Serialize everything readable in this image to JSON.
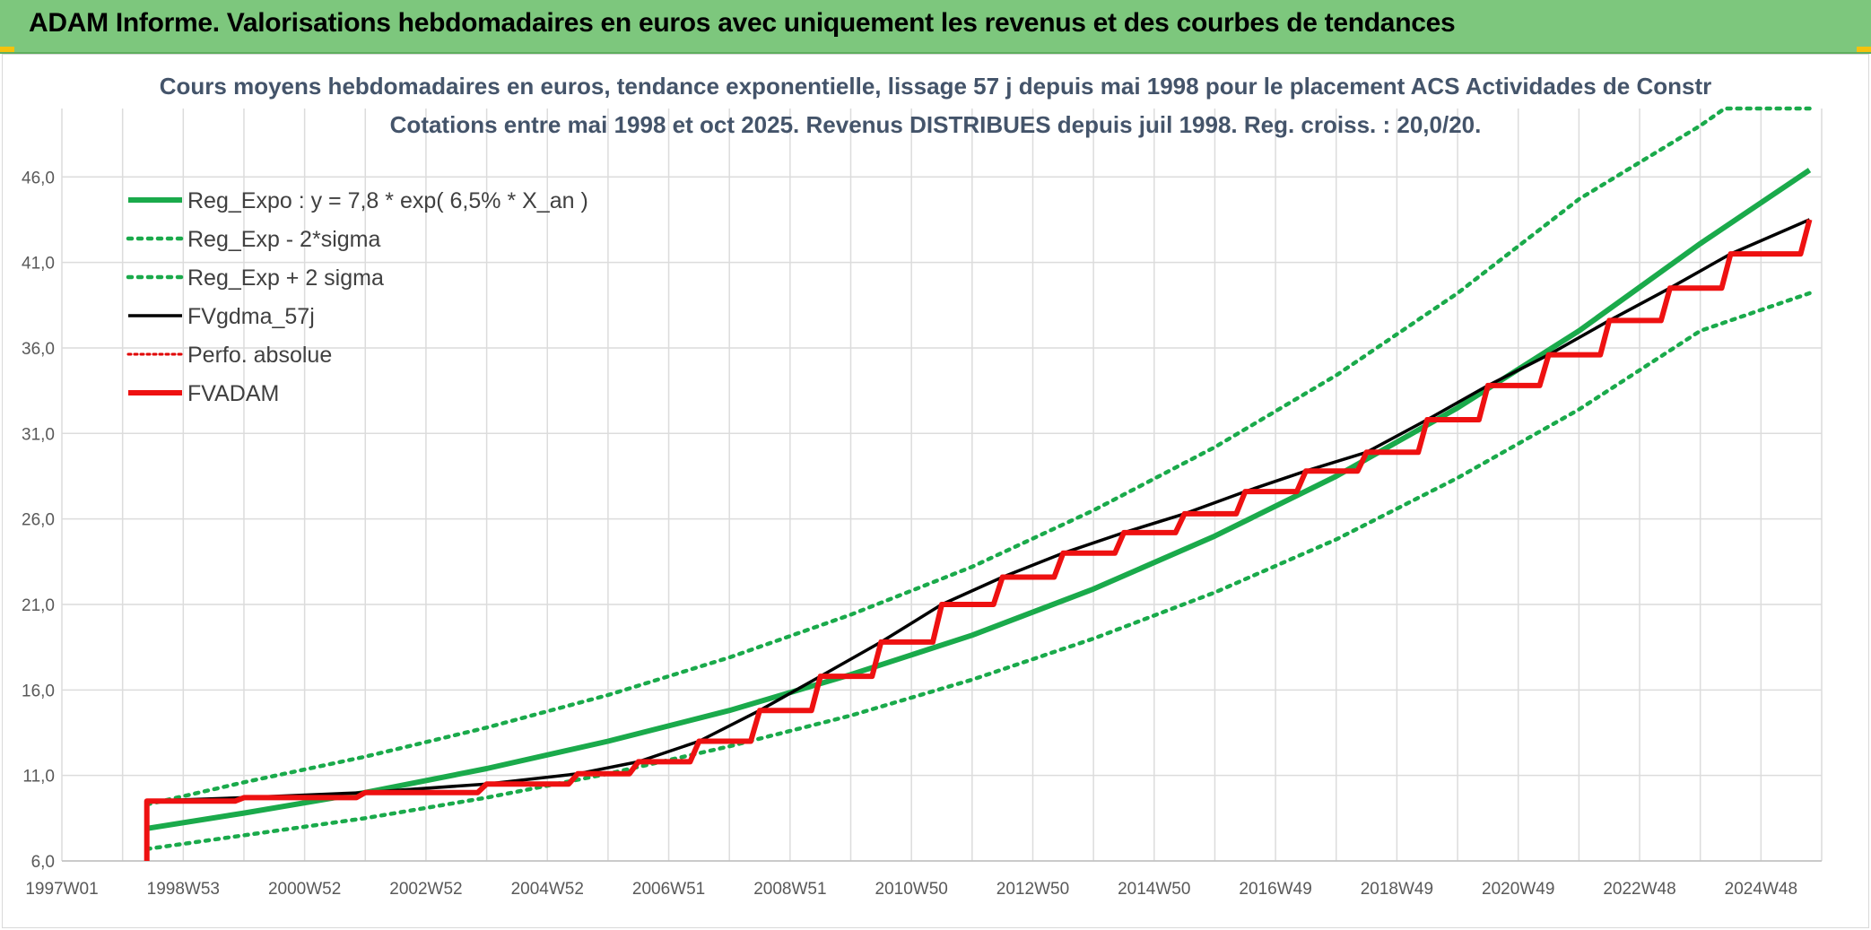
{
  "header": {
    "title": "ADAM Informe. Valorisations hebdomadaires en euros avec uniquement les revenus et des courbes de tendances"
  },
  "colors": {
    "banner": "#7dc77d",
    "reg_expo": "#1aaa4b",
    "sigma": "#1aaa4b",
    "fvgdma": "#000000",
    "perfo": "#e00000",
    "fvadam": "#ee1111",
    "grid": "#dcdcdc"
  },
  "chart_data": {
    "type": "line",
    "title": "Cours moyens hebdomadaires en euros, tendance exponentielle, lissage 57 j depuis mai 1998 pour le placement ACS Actividades de Constr",
    "subtitle": "Cotations entre mai 1998 et oct 2025. Revenus DISTRIBUES depuis juil 1998. Reg. croiss. : 20,0/20.",
    "xlabel": "",
    "ylabel": "",
    "x_tick_labels": [
      "1997W01",
      "1998W53",
      "2000W52",
      "2002W52",
      "2004W52",
      "2006W51",
      "2008W51",
      "2010W50",
      "2012W50",
      "2014W50",
      "2016W49",
      "2018W49",
      "2020W49",
      "2022W48",
      "2024W48"
    ],
    "x_ticks_year": [
      1997.0,
      1999.0,
      2001.0,
      2003.0,
      2005.0,
      2007.0,
      2009.0,
      2011.0,
      2013.0,
      2015.0,
      2017.0,
      2019.0,
      2021.0,
      2023.0,
      2025.0
    ],
    "xlim": [
      1997.0,
      2026.0
    ],
    "y_tick_labels": [
      "6,0",
      "11,0",
      "16,0",
      "21,0",
      "26,0",
      "31,0",
      "36,0",
      "41,0",
      "46,0"
    ],
    "y_ticks": [
      6,
      11,
      16,
      21,
      26,
      31,
      36,
      41,
      46
    ],
    "ylim": [
      6,
      50
    ],
    "grid": true,
    "legend_position": "top-left",
    "series": [
      {
        "name": "Reg_Expo : y = 7,8 * exp( 6,5% *  X_an )",
        "style": "solid",
        "x": [
          1998.4,
          2000,
          2002,
          2004,
          2006,
          2008,
          2010,
          2012,
          2014,
          2016,
          2018,
          2020,
          2022,
          2024,
          2025.8
        ],
        "y": [
          7.9,
          8.8,
          10.0,
          11.4,
          13.0,
          14.8,
          16.9,
          19.2,
          21.9,
          25.0,
          28.5,
          32.5,
          37.0,
          42.1,
          46.4
        ]
      },
      {
        "name": "Reg_Exp - 2*sigma",
        "style": "dotted",
        "x": [
          1998.4,
          2000,
          2002,
          2004,
          2006,
          2008,
          2010,
          2012,
          2014,
          2016,
          2018,
          2020,
          2022,
          2024,
          2025.8
        ],
        "y": [
          6.7,
          7.5,
          8.5,
          9.7,
          11.1,
          12.7,
          14.5,
          16.6,
          19.0,
          21.7,
          24.8,
          28.4,
          32.4,
          37.0,
          39.2
        ]
      },
      {
        "name": "Reg_Exp + 2 sigma",
        "style": "dotted",
        "x": [
          1998.4,
          2000,
          2002,
          2004,
          2006,
          2008,
          2010,
          2012,
          2014,
          2016,
          2018,
          2020,
          2022,
          2024,
          2024.4,
          2025.8
        ],
        "y": [
          9.3,
          10.6,
          12.1,
          13.8,
          15.7,
          17.9,
          20.4,
          23.2,
          26.5,
          30.2,
          34.4,
          39.2,
          44.7,
          49.0,
          50.0,
          50.0
        ]
      },
      {
        "name": "FVgdma_57j",
        "style": "solid",
        "x": [
          1998.4,
          1998.4,
          2000,
          2002,
          2004,
          2005.5,
          2006.5,
          2007.5,
          2008.5,
          2009.5,
          2010.5,
          2011.5,
          2012.5,
          2013.5,
          2014.5,
          2015.5,
          2016.5,
          2017.5,
          2018.5,
          2019.5,
          2020.5,
          2021.5,
          2022.5,
          2023.5,
          2024.5,
          2025.8
        ],
        "y": [
          6.0,
          9.5,
          9.7,
          10.0,
          10.5,
          11.1,
          11.8,
          13.0,
          14.8,
          16.8,
          18.8,
          21.0,
          22.6,
          24.0,
          25.2,
          26.3,
          27.6,
          28.8,
          29.9,
          31.8,
          33.8,
          35.6,
          37.6,
          39.5,
          41.5,
          43.5
        ]
      },
      {
        "name": "Perfo. absolue",
        "style": "dotted",
        "x": [],
        "y": []
      },
      {
        "name": "FVADAM",
        "style": "step",
        "x": [
          1998.4,
          1998.4,
          2000,
          2002,
          2004,
          2005.5,
          2006.5,
          2007.5,
          2008.5,
          2009.5,
          2010.5,
          2011.5,
          2012.5,
          2013.5,
          2014.5,
          2015.5,
          2016.5,
          2017.5,
          2018.5,
          2019.5,
          2020.5,
          2021.5,
          2022.5,
          2023.5,
          2024.5,
          2025.8
        ],
        "y": [
          6.0,
          9.5,
          9.7,
          10.0,
          10.5,
          11.1,
          11.8,
          13.0,
          14.8,
          16.8,
          18.8,
          21.0,
          22.6,
          24.0,
          25.2,
          26.3,
          27.6,
          28.8,
          29.9,
          31.8,
          33.8,
          35.6,
          37.6,
          39.5,
          41.5,
          43.5
        ]
      }
    ]
  }
}
